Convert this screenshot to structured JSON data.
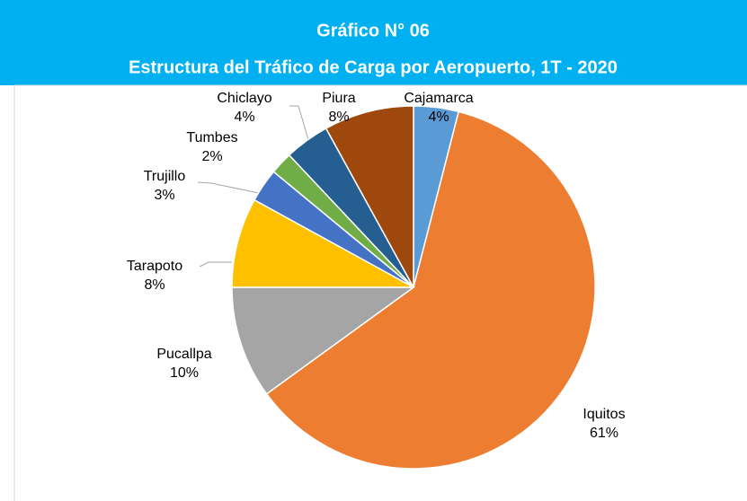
{
  "chart_data": {
    "type": "pie",
    "title": "Gráfico N°  06",
    "subtitle": "Estructura del Tráfico de Carga por Aeropuerto, 1T - 2020",
    "categories": [
      "Cajamarca",
      "Iquitos",
      "Pucallpa",
      "Tarapoto",
      "Trujillo",
      "Tumbes",
      "Chiclayo",
      "Piura"
    ],
    "values": [
      4,
      61,
      10,
      8,
      3,
      2,
      4,
      8
    ],
    "value_labels": [
      "4%",
      "61%",
      "10%",
      "8%",
      "3%",
      "2%",
      "4%",
      "8%"
    ],
    "colors": [
      "#5b9bd5",
      "#ed7d31",
      "#a5a5a5",
      "#ffc000",
      "#4472c4",
      "#70ad47",
      "#255e91",
      "#9e480e"
    ]
  }
}
